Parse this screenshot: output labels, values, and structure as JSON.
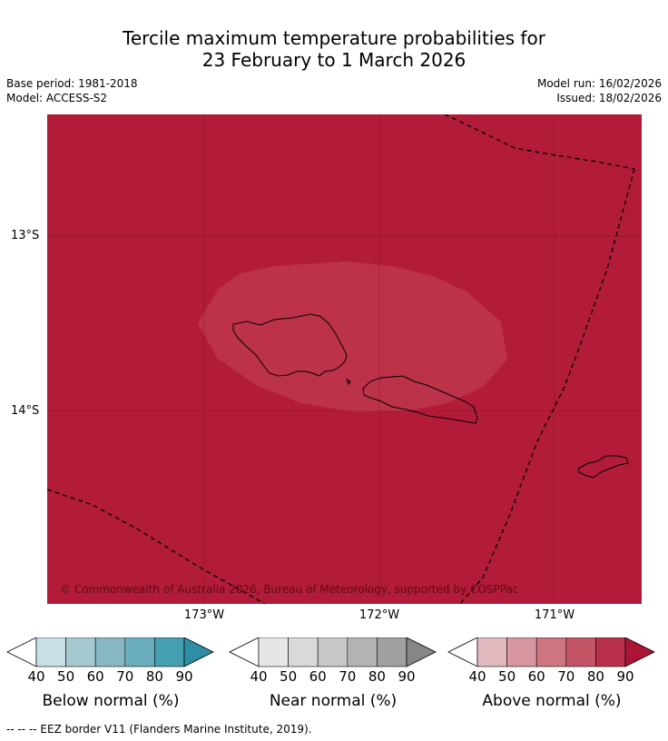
{
  "title": {
    "line1": "Tercile maximum temperature probabilities for",
    "line2": "23 February to 1 March 2026"
  },
  "meta": {
    "base_period": "Base period: 1981-2018",
    "model": "Model: ACCESS-S2",
    "model_run": "Model run: 16/02/2026",
    "issued": "Issued: 18/02/2026"
  },
  "map": {
    "copyright": "© Commonwealth of Australia 2026, Bureau of Meteorology, supported by COSPPac",
    "lat_labels": [
      "13°S",
      "14°S"
    ],
    "lon_labels": [
      "173°W",
      "172°W",
      "171°W"
    ],
    "colors": {
      "background": "#b31c38",
      "inner_region": "#bc3349"
    }
  },
  "colorbars": [
    {
      "title": "Below normal (%)",
      "ticks": [
        "40",
        "50",
        "60",
        "70",
        "80",
        "90"
      ],
      "colors": [
        "#c6e0e6",
        "#a6c8cf",
        "#88b7c4",
        "#6aaebd",
        "#449fb0",
        "#2e8ea3"
      ]
    },
    {
      "title": "Near normal (%)",
      "ticks": [
        "40",
        "50",
        "60",
        "70",
        "80",
        "90"
      ],
      "colors": [
        "#e6e6e6",
        "#d9d9d9",
        "#c8c8c8",
        "#b4b4b4",
        "#a0a0a0",
        "#868686"
      ]
    },
    {
      "title": "Above normal (%)",
      "ticks": [
        "40",
        "50",
        "60",
        "70",
        "80",
        "90"
      ],
      "colors": [
        "#e2b8bf",
        "#d6959f",
        "#ce7680",
        "#c45564",
        "#b8304a",
        "#ad1535"
      ]
    }
  ],
  "footer": "--  --  -- EEZ border V11 (Flanders Marine Institute, 2019)."
}
